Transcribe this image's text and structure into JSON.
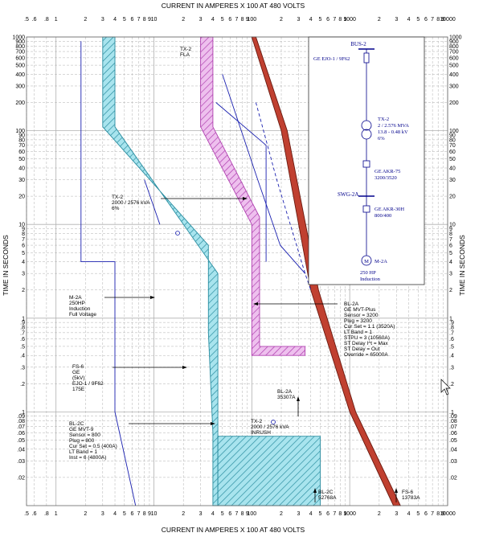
{
  "chart_data": {
    "type": "line",
    "title_top": "CURRENT IN AMPERES X 100 AT 480 VOLTS",
    "title_bottom": "CURRENT IN AMPERES X 100 AT 480 VOLTS",
    "ylabel_left": "TIME IN SECONDS",
    "ylabel_right": "TIME IN SECONDS",
    "x_scale": "log",
    "y_scale": "log",
    "xlim": [
      0.5,
      10000
    ],
    "ylim": [
      0.01,
      1000
    ],
    "x_tick_labels": [
      {
        "v": 0.5,
        "t": ".5"
      },
      {
        "v": 0.6,
        "t": ".6"
      },
      {
        "v": 0.8,
        "t": ".8"
      },
      {
        "v": 1,
        "t": "1"
      },
      {
        "v": 2,
        "t": "2"
      },
      {
        "v": 3,
        "t": "3"
      },
      {
        "v": 4,
        "t": "4"
      },
      {
        "v": 5,
        "t": "5"
      },
      {
        "v": 6,
        "t": "6"
      },
      {
        "v": 7,
        "t": "7"
      },
      {
        "v": 8,
        "t": "8"
      },
      {
        "v": 9,
        "t": "9"
      },
      {
        "v": 10,
        "t": "10"
      },
      {
        "v": 20,
        "t": "2"
      },
      {
        "v": 30,
        "t": "3"
      },
      {
        "v": 40,
        "t": "4"
      },
      {
        "v": 50,
        "t": "5"
      },
      {
        "v": 60,
        "t": "6"
      },
      {
        "v": 70,
        "t": "7"
      },
      {
        "v": 80,
        "t": "8"
      },
      {
        "v": 90,
        "t": "9"
      },
      {
        "v": 100,
        "t": "100"
      },
      {
        "v": 200,
        "t": "2"
      },
      {
        "v": 300,
        "t": "3"
      },
      {
        "v": 400,
        "t": "4"
      },
      {
        "v": 500,
        "t": "5"
      },
      {
        "v": 600,
        "t": "6"
      },
      {
        "v": 700,
        "t": "7"
      },
      {
        "v": 800,
        "t": "8"
      },
      {
        "v": 900,
        "t": "9"
      },
      {
        "v": 1000,
        "t": "1000"
      },
      {
        "v": 2000,
        "t": "2"
      },
      {
        "v": 3000,
        "t": "3"
      },
      {
        "v": 4000,
        "t": "4"
      },
      {
        "v": 5000,
        "t": "5"
      },
      {
        "v": 6000,
        "t": "6"
      },
      {
        "v": 7000,
        "t": "7"
      },
      {
        "v": 8000,
        "t": "8"
      },
      {
        "v": 9000,
        "t": "9"
      },
      {
        "v": 10000,
        "t": "10000"
      }
    ],
    "y_tick_labels": [
      {
        "v": 1000,
        "t": "1000"
      },
      {
        "v": 900,
        "t": "900"
      },
      {
        "v": 800,
        "t": "800"
      },
      {
        "v": 700,
        "t": "700"
      },
      {
        "v": 600,
        "t": "600"
      },
      {
        "v": 500,
        "t": "500"
      },
      {
        "v": 400,
        "t": "400"
      },
      {
        "v": 300,
        "t": "300"
      },
      {
        "v": 200,
        "t": "200"
      },
      {
        "v": 100,
        "t": "100"
      },
      {
        "v": 90,
        "t": "90"
      },
      {
        "v": 80,
        "t": "80"
      },
      {
        "v": 70,
        "t": "70"
      },
      {
        "v": 60,
        "t": "60"
      },
      {
        "v": 50,
        "t": "50"
      },
      {
        "v": 40,
        "t": "40"
      },
      {
        "v": 30,
        "t": "30"
      },
      {
        "v": 20,
        "t": "20"
      },
      {
        "v": 10,
        "t": "10"
      },
      {
        "v": 9,
        "t": "9"
      },
      {
        "v": 8,
        "t": "8"
      },
      {
        "v": 7,
        "t": "7"
      },
      {
        "v": 6,
        "t": "6"
      },
      {
        "v": 5,
        "t": "5"
      },
      {
        "v": 4,
        "t": "4"
      },
      {
        "v": 3,
        "t": "3"
      },
      {
        "v": 2,
        "t": "2"
      },
      {
        "v": 1,
        "t": "1"
      },
      {
        "v": 0.9,
        "t": ".9"
      },
      {
        "v": 0.8,
        "t": ".8"
      },
      {
        "v": 0.7,
        "t": ".7"
      },
      {
        "v": 0.6,
        "t": ".6"
      },
      {
        "v": 0.5,
        "t": ".5"
      },
      {
        "v": 0.4,
        "t": ".4"
      },
      {
        "v": 0.3,
        "t": ".3"
      },
      {
        "v": 0.2,
        "t": ".2"
      },
      {
        "v": 0.1,
        "t": ".1"
      },
      {
        "v": 0.09,
        "t": ".09"
      },
      {
        "v": 0.08,
        "t": ".08"
      },
      {
        "v": 0.07,
        "t": ".07"
      },
      {
        "v": 0.06,
        "t": ".06"
      },
      {
        "v": 0.05,
        "t": ".05"
      },
      {
        "v": 0.04,
        "t": ".04"
      },
      {
        "v": 0.03,
        "t": ".03"
      },
      {
        "v": 0.02,
        "t": ".02"
      }
    ],
    "grid": true,
    "colors": {
      "cyan_band": "#a8e4ee",
      "cyan_edge": "#2a8da0",
      "magenta_band": "#eec0ee",
      "magenta_edge": "#b040b0",
      "red_curve": "#c04030",
      "blue_line": "#1a20b0",
      "grid": "#b0b0b0",
      "oneline": "#00008b"
    },
    "series": [
      {
        "key": "fs6",
        "kind": "band",
        "fill": "cyan",
        "low": [
          [
            3,
            1000
          ],
          [
            3,
            110
          ],
          [
            36,
            6
          ],
          [
            36,
            0.7
          ],
          [
            40,
            0.06
          ],
          [
            40,
            0.01
          ]
        ],
        "high": [
          [
            4,
            1000
          ],
          [
            4,
            110
          ],
          [
            45,
            3
          ],
          [
            45,
            0.1
          ],
          [
            45,
            0.01
          ]
        ]
      },
      {
        "key": "bl2c",
        "kind": "band",
        "fill": "cyan",
        "low": [
          [
            45,
            0.055
          ],
          [
            45,
            0.01
          ]
        ],
        "high": [
          [
            500,
            0.055
          ],
          [
            500,
            0.01
          ]
        ]
      },
      {
        "key": "bl2a",
        "kind": "band",
        "fill": "magenta",
        "low": [
          [
            30,
            1000
          ],
          [
            30,
            110
          ],
          [
            100,
            10
          ],
          [
            100,
            0.4
          ],
          [
            350,
            0.4
          ]
        ],
        "high": [
          [
            40,
            1000
          ],
          [
            40,
            110
          ],
          [
            120,
            12
          ],
          [
            120,
            0.5
          ],
          [
            350,
            0.5
          ]
        ]
      },
      {
        "key": "tx2_damage",
        "kind": "band",
        "fill": "red",
        "low": [
          [
            100,
            1000
          ],
          [
            200,
            100
          ],
          [
            400,
            2
          ],
          [
            1000,
            0.1
          ],
          [
            2800,
            0.01
          ]
        ],
        "high": [
          [
            110,
            1000
          ],
          [
            230,
            100
          ],
          [
            480,
            2
          ],
          [
            1150,
            0.1
          ],
          [
            3300,
            0.01
          ]
        ]
      },
      {
        "key": "m2a",
        "kind": "line",
        "stroke": "blue",
        "points": [
          [
            1.8,
            900
          ],
          [
            1.8,
            4
          ],
          [
            4,
            4
          ],
          [
            4,
            0.1
          ],
          [
            6.5,
            0.01
          ]
        ]
      },
      {
        "key": "tx2_ansi",
        "kind": "line",
        "stroke": "blue",
        "points": [
          [
            8,
            30
          ],
          [
            11.5,
            10
          ]
        ]
      },
      {
        "key": "bl2a_minus",
        "kind": "line",
        "stroke": "blue",
        "points": [
          [
            50,
            400
          ],
          [
            115,
            30
          ],
          [
            195,
            6
          ],
          [
            350,
            3
          ]
        ]
      },
      {
        "key": "ge_akr_30h",
        "kind": "line",
        "stroke": "blue",
        "points": [
          [
            43,
            200
          ],
          [
            140,
            70
          ],
          [
            140,
            4
          ]
        ]
      },
      {
        "key": "tx2_dashed",
        "kind": "line",
        "stroke": "blue",
        "dashed": true,
        "points": [
          [
            110,
            200
          ],
          [
            180,
            30
          ],
          [
            350,
            3
          ],
          [
            400,
            2
          ]
        ]
      }
    ],
    "annotations": [
      {
        "key": "tx2_fla",
        "lines": [
          "TX-2",
          "FLA"
        ]
      },
      {
        "key": "tx2_ansi_label",
        "lines": [
          "TX-2",
          "2000 / 2576 kVA",
          "6%"
        ]
      },
      {
        "key": "m2a_label",
        "lines": [
          "M-2A",
          "250HP",
          "Induction",
          "Full Voltage"
        ]
      },
      {
        "key": "bl2a_label",
        "lines": [
          "BL-2A",
          "GE MVT-Plus",
          "Sensor = 3200",
          "Plug = 3200",
          "Cur Set = 1.1 (3520A)",
          "LT Band = 1",
          "STPU = 3 (10560A)",
          "ST Delay I^t = Max",
          "ST Delay = Out",
          "Override = 65000A"
        ]
      },
      {
        "key": "fs6_label",
        "lines": [
          "FS-6",
          "GE",
          "(5kV)",
          "EJO-1 / 9F62",
          "175E"
        ]
      },
      {
        "key": "bl2a_sc",
        "lines": [
          "BL-2A",
          "35307A"
        ]
      },
      {
        "key": "bl2c_label",
        "lines": [
          "BL-2C",
          "GE MVT-9",
          "Sensor = 800",
          "Plug = 800",
          "Cur Set = 0.5 (400A)",
          "LT Band = 1",
          "Inst = 6 (4800A)"
        ]
      },
      {
        "key": "tx2_inrush",
        "lines": [
          "TX-2",
          "2000 / 2576 kVA",
          "INRUSH"
        ]
      },
      {
        "key": "bl2c_sc",
        "lines": [
          "BL-2C",
          "52768A"
        ]
      },
      {
        "key": "fs6_sc",
        "lines": [
          "FS-6",
          "13783A"
        ]
      }
    ]
  },
  "one_line": {
    "bus": "BUS-2",
    "fuse": "GE EJO-1 / 9F62",
    "transformer": [
      "TX-2",
      "2 / 2.576 MVA",
      "13.8 - 0.48 kV",
      "6%"
    ],
    "breaker1": [
      "GE AKR-75",
      "3200/3520"
    ],
    "swgr": "SWG-2A",
    "breaker2": [
      "GE AKR-30H",
      "800/400"
    ],
    "motor": "M-2A",
    "motor_desc": [
      "250 HP",
      "Induction"
    ]
  }
}
